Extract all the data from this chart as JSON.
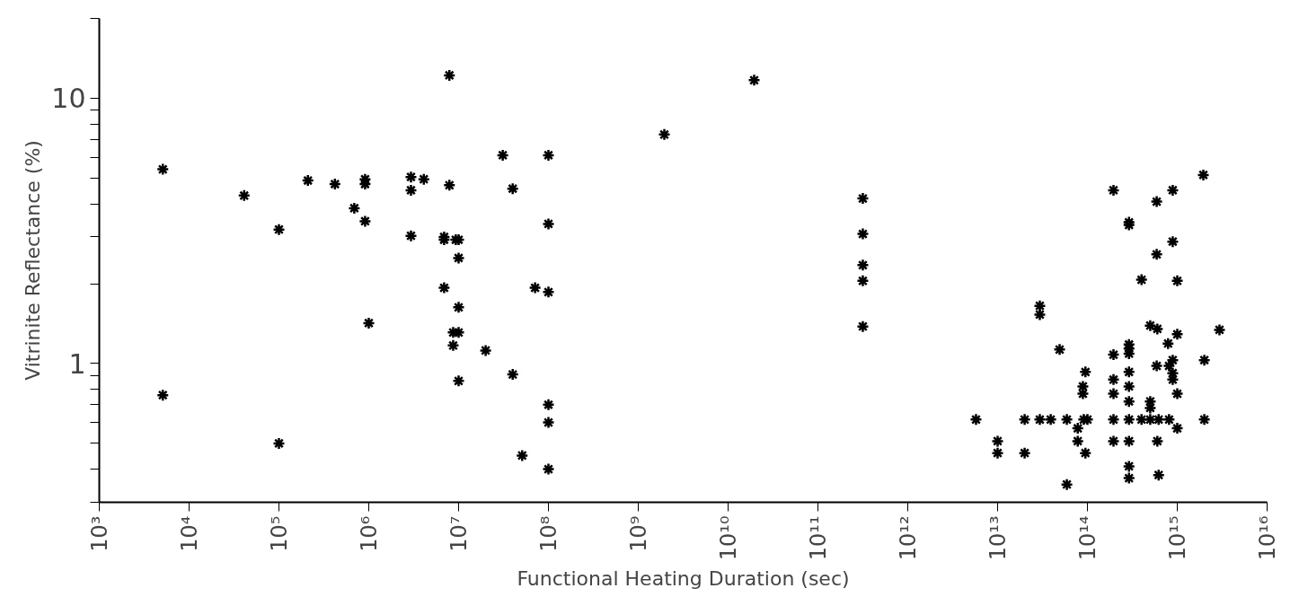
{
  "chart_data": {
    "type": "scatter",
    "xlabel": "Functional Heating Duration (sec)",
    "ylabel": "Vitrinite Reflectance (%)",
    "log": "xy",
    "grid": false,
    "marker": "cross",
    "color": "#000000",
    "xlim": [
      1000.0,
      1e+16
    ],
    "ylim": [
      0.3,
      20
    ],
    "xticks": [
      {
        "value": 1000.0,
        "label": "10³"
      },
      {
        "value": 10000.0,
        "label": "10⁴"
      },
      {
        "value": 100000.0,
        "label": "10⁵"
      },
      {
        "value": 1000000.0,
        "label": "10⁶"
      },
      {
        "value": 10000000.0,
        "label": "10⁷"
      },
      {
        "value": 100000000.0,
        "label": "10⁸"
      },
      {
        "value": 1000000000.0,
        "label": "10⁹"
      },
      {
        "value": 10000000000.0,
        "label": "10¹⁰"
      },
      {
        "value": 100000000000.0,
        "label": "10¹¹"
      },
      {
        "value": 1000000000000.0,
        "label": "10¹²"
      },
      {
        "value": 10000000000000.0,
        "label": "10¹³"
      },
      {
        "value": 100000000000000.0,
        "label": "10¹⁴"
      },
      {
        "value": 1000000000000000.0,
        "label": "10¹⁵"
      },
      {
        "value": 1e+16,
        "label": "10¹⁶"
      }
    ],
    "yticks": [
      {
        "value": 0.3,
        "label": null
      },
      {
        "value": 0.4,
        "label": null
      },
      {
        "value": 0.5,
        "label": null
      },
      {
        "value": 0.6,
        "label": null
      },
      {
        "value": 0.7,
        "label": null
      },
      {
        "value": 0.8,
        "label": null
      },
      {
        "value": 0.9,
        "label": null
      },
      1,
      {
        "value": 2,
        "label": null
      },
      {
        "value": 3,
        "label": null
      },
      {
        "value": 4,
        "label": null
      },
      {
        "value": 5,
        "label": null
      },
      {
        "value": 6,
        "label": null
      },
      {
        "value": 7,
        "label": null
      },
      {
        "value": 8,
        "label": null
      },
      {
        "value": 9,
        "label": null
      },
      10,
      {
        "value": 20,
        "label": null
      }
    ],
    "x": [
      5100.0,
      5100.0,
      41000.0,
      100000.0,
      100000.0,
      210000.0,
      420000.0,
      910000.0,
      910000.0,
      690000.0,
      910000.0,
      1000000.0,
      2950000.0,
      2950000.0,
      4100000.0,
      2950000.0,
      7900000.0,
      7900000.0,
      6900000.0,
      6900000.0,
      9300000.0,
      10000000.0,
      10000000.0,
      6900000.0,
      10000000.0,
      8700000.0,
      10000000.0,
      8700000.0,
      10000000.0,
      20000000.0,
      31000000.0,
      100000000.0,
      40000000.0,
      100000000.0,
      71000000.0,
      100000000.0,
      40000000.0,
      100000000.0,
      100000000.0,
      51000000.0,
      100000000.0,
      1950000000.0,
      19500000000.0,
      316000000000.0,
      316000000000.0,
      316000000000.0,
      316000000000.0,
      316000000000.0,
      5750000000000.0,
      10000000000000.0,
      10000000000000.0,
      20000000000000.0,
      20000000000000.0,
      29500000000000.0,
      39000000000000.0,
      29500000000000.0,
      29500000000000.0,
      49000000000000.0,
      59000000000000.0,
      59000000000000.0,
      78000000000000.0,
      78000000000000.0,
      89000000000000.0,
      89000000000000.0,
      95000000000000.0,
      91000000000000.0,
      100000000000000.0,
      95000000000000.0,
      195000000000000.0,
      195000000000000.0,
      195000000000000.0,
      195000000000000.0,
      195000000000000.0,
      195000000000000.0,
      290000000000000.0,
      290000000000000.0,
      290000000000000.0,
      290000000000000.0,
      290000000000000.0,
      290000000000000.0,
      290000000000000.0,
      290000000000000.0,
      290000000000000.0,
      290000000000000.0,
      290000000000000.0,
      290000000000000.0,
      400000000000000.0,
      400000000000000.0,
      500000000000000.0,
      500000000000000.0,
      500000000000000.0,
      500000000000000.0,
      590000000000000.0,
      590000000000000.0,
      600000000000000.0,
      590000000000000.0,
      620000000000000.0,
      600000000000000.0,
      620000000000000.0,
      890000000000000.0,
      890000000000000.0,
      790000000000000.0,
      890000000000000.0,
      810000000000000.0,
      890000000000000.0,
      890000000000000.0,
      810000000000000.0,
      1000000000000000.0,
      1000000000000000.0,
      1000000000000000.0,
      1000000000000000.0,
      1950000000000000.0,
      2000000000000000.0,
      2000000000000000.0,
      2950000000000000.0
    ],
    "values": [
      5.4,
      0.76,
      4.3,
      3.2,
      0.5,
      4.9,
      4.75,
      4.95,
      4.75,
      3.85,
      3.44,
      1.42,
      5.05,
      4.5,
      4.95,
      3.03,
      12.2,
      4.7,
      3.0,
      2.93,
      2.93,
      2.93,
      2.5,
      1.93,
      1.63,
      1.31,
      1.31,
      1.17,
      0.86,
      1.12,
      6.1,
      6.1,
      4.56,
      3.36,
      1.93,
      1.86,
      0.91,
      0.7,
      0.6,
      0.45,
      0.4,
      7.3,
      11.7,
      4.19,
      3.08,
      2.35,
      2.05,
      1.38,
      0.615,
      0.51,
      0.46,
      0.615,
      0.46,
      0.615,
      0.615,
      1.65,
      1.53,
      1.13,
      0.615,
      0.35,
      0.57,
      0.51,
      0.82,
      0.77,
      0.93,
      0.615,
      0.615,
      0.46,
      4.5,
      1.08,
      0.87,
      0.77,
      0.615,
      0.51,
      3.41,
      3.33,
      1.18,
      1.14,
      1.09,
      0.93,
      0.82,
      0.72,
      0.615,
      0.51,
      0.41,
      0.37,
      2.07,
      0.615,
      1.39,
      0.72,
      0.68,
      0.615,
      4.08,
      2.58,
      1.35,
      0.98,
      0.615,
      0.51,
      0.38,
      4.5,
      2.88,
      1.19,
      1.03,
      0.98,
      0.92,
      0.87,
      0.615,
      2.05,
      1.29,
      0.77,
      0.57,
      5.14,
      1.03,
      0.615,
      1.34
    ]
  }
}
